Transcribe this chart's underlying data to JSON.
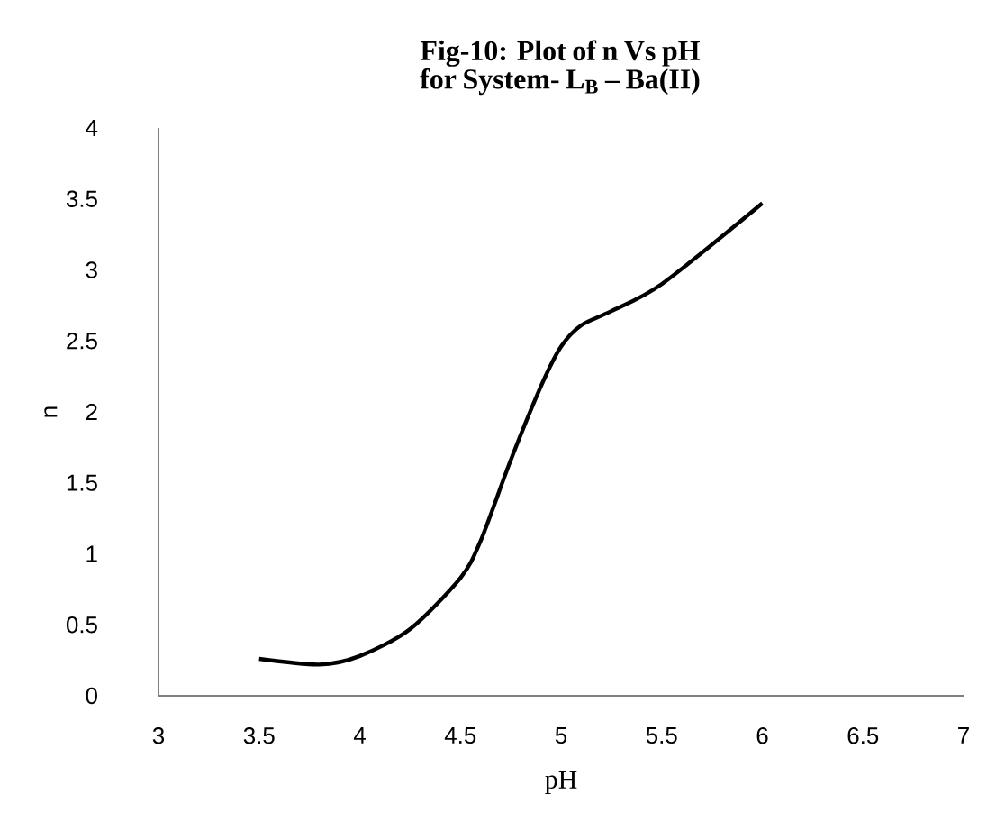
{
  "chart_data": {
    "type": "line",
    "title": "Fig-10: Plot of n Vs pH  for System- L$_{B}$ – Ba(II)",
    "xlabel": "pH",
    "ylabel": "n",
    "x": [
      3.5,
      3.8,
      4.0,
      4.25,
      4.5,
      4.6,
      4.75,
      4.9,
      5.0,
      5.1,
      5.25,
      5.5,
      6.0
    ],
    "series": [
      {
        "color": "#000000",
        "values": [
          0.26,
          0.22,
          0.28,
          0.47,
          0.83,
          1.09,
          1.66,
          2.18,
          2.46,
          2.61,
          2.71,
          2.9,
          3.47
        ]
      }
    ],
    "xlim": [
      3,
      7
    ],
    "ylim": [
      0,
      4
    ],
    "xticks": [
      3,
      3.5,
      4,
      4.5,
      5,
      5.5,
      6,
      6.5,
      7
    ],
    "yticks": [
      0,
      0.5,
      1,
      1.5,
      2,
      2.5,
      3,
      3.5,
      4
    ],
    "grid": false,
    "marker": "none",
    "line_style": "solid"
  }
}
